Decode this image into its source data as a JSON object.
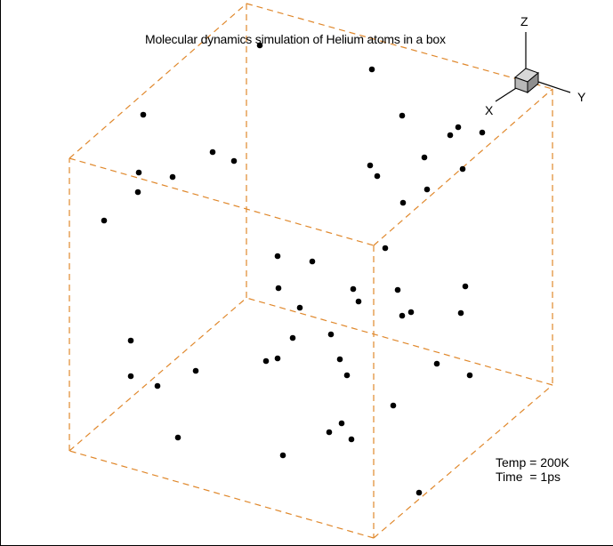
{
  "title": "Molecular dynamics simulation of Helium atoms in a box",
  "readout": {
    "temp": "Temp = 200K",
    "time": "Time  = 1ps"
  },
  "axes_triad": {
    "x_label": "X",
    "y_label": "Y",
    "z_label": "Z"
  },
  "colors": {
    "box_edges": "#e0882c",
    "atoms": "#000000",
    "cube_fill": "#b8b8b8"
  },
  "box": {
    "edge_style": "dashed"
  }
}
